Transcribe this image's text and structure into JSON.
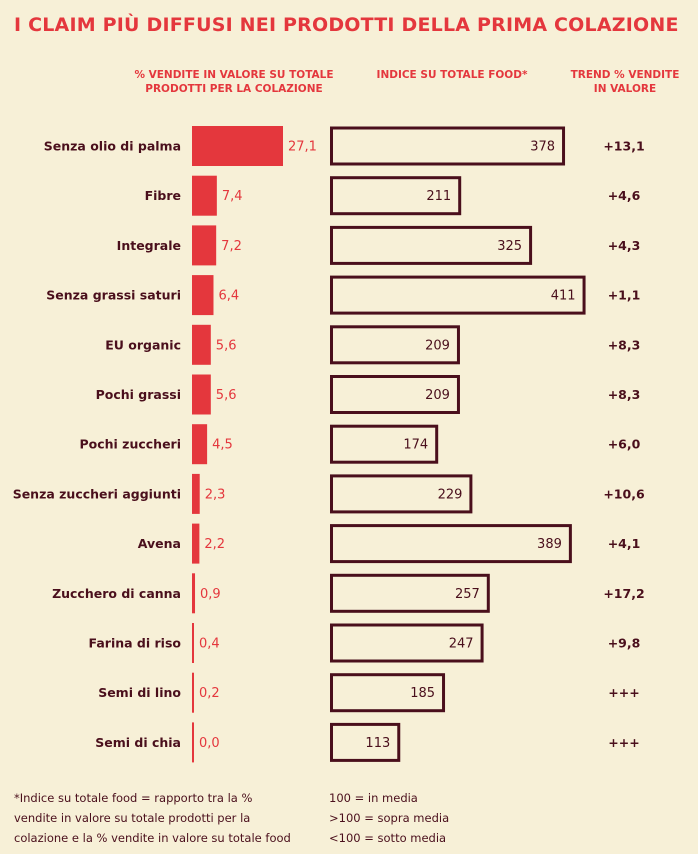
{
  "title": "I CLAIM PIÙ DIFFUSI NEI PRODOTTI DELLA PRIMA COLAZIONE",
  "headers": {
    "share_line1": "% VENDITE IN VALORE SU TOTALE",
    "share_line2": "PRODOTTI PER LA COLAZIONE",
    "index": "INDICE SU TOTALE FOOD*",
    "trend_line1": "TREND % VENDITE",
    "trend_line2": "IN VALORE"
  },
  "colors": {
    "accent": "#e4373d",
    "dark": "#4a0f1c",
    "background": "#f7f0d7"
  },
  "chart_data": {
    "type": "bar",
    "title": "I CLAIM PIÙ DIFFUSI NEI PRODOTTI DELLA PRIMA COLAZIONE",
    "categories": [
      "Senza olio di palma",
      "Fibre",
      "Integrale",
      "Senza grassi saturi",
      "EU organic",
      "Pochi grassi",
      "Pochi zuccheri",
      "Senza zuccheri aggiunti",
      "Avena",
      "Zucchero di canna",
      "Farina di riso",
      "Semi di lino",
      "Semi di chia"
    ],
    "series": [
      {
        "name": "% VENDITE IN VALORE SU TOTALE PRODOTTI PER LA COLAZIONE",
        "values": [
          27.1,
          7.4,
          7.2,
          6.4,
          5.6,
          5.6,
          4.5,
          2.3,
          2.2,
          0.9,
          0.4,
          0.2,
          0.0
        ],
        "labels": [
          "27,1",
          "7,4",
          "7,2",
          "6,4",
          "5,6",
          "5,6",
          "4,5",
          "2,3",
          "2,2",
          "0,9",
          "0,4",
          "0,2",
          "0,0"
        ]
      },
      {
        "name": "INDICE SU TOTALE FOOD*",
        "values": [
          378,
          211,
          325,
          411,
          209,
          209,
          174,
          229,
          389,
          257,
          247,
          185,
          113
        ],
        "labels": [
          "378",
          "211",
          "325",
          "411",
          "209",
          "209",
          "174",
          "229",
          "389",
          "257",
          "247",
          "185",
          "113"
        ]
      },
      {
        "name": "TREND % VENDITE IN VALORE",
        "labels": [
          "+13,1",
          "+4,6",
          "+4,3",
          "+1,1",
          "+8,3",
          "+8,3",
          "+6,0",
          "+10,6",
          "+4,1",
          "+17,2",
          "+9,8",
          "+++",
          "+++"
        ]
      }
    ]
  },
  "footnote": {
    "left": [
      "*Indice su totale food = rapporto tra la %",
      "vendite in valore su totale prodotti per la",
      "colazione e la % vendite in valore su totale food"
    ],
    "right": [
      "100 = in media",
      ">100 = sopra media",
      "<100 = sotto media"
    ]
  }
}
